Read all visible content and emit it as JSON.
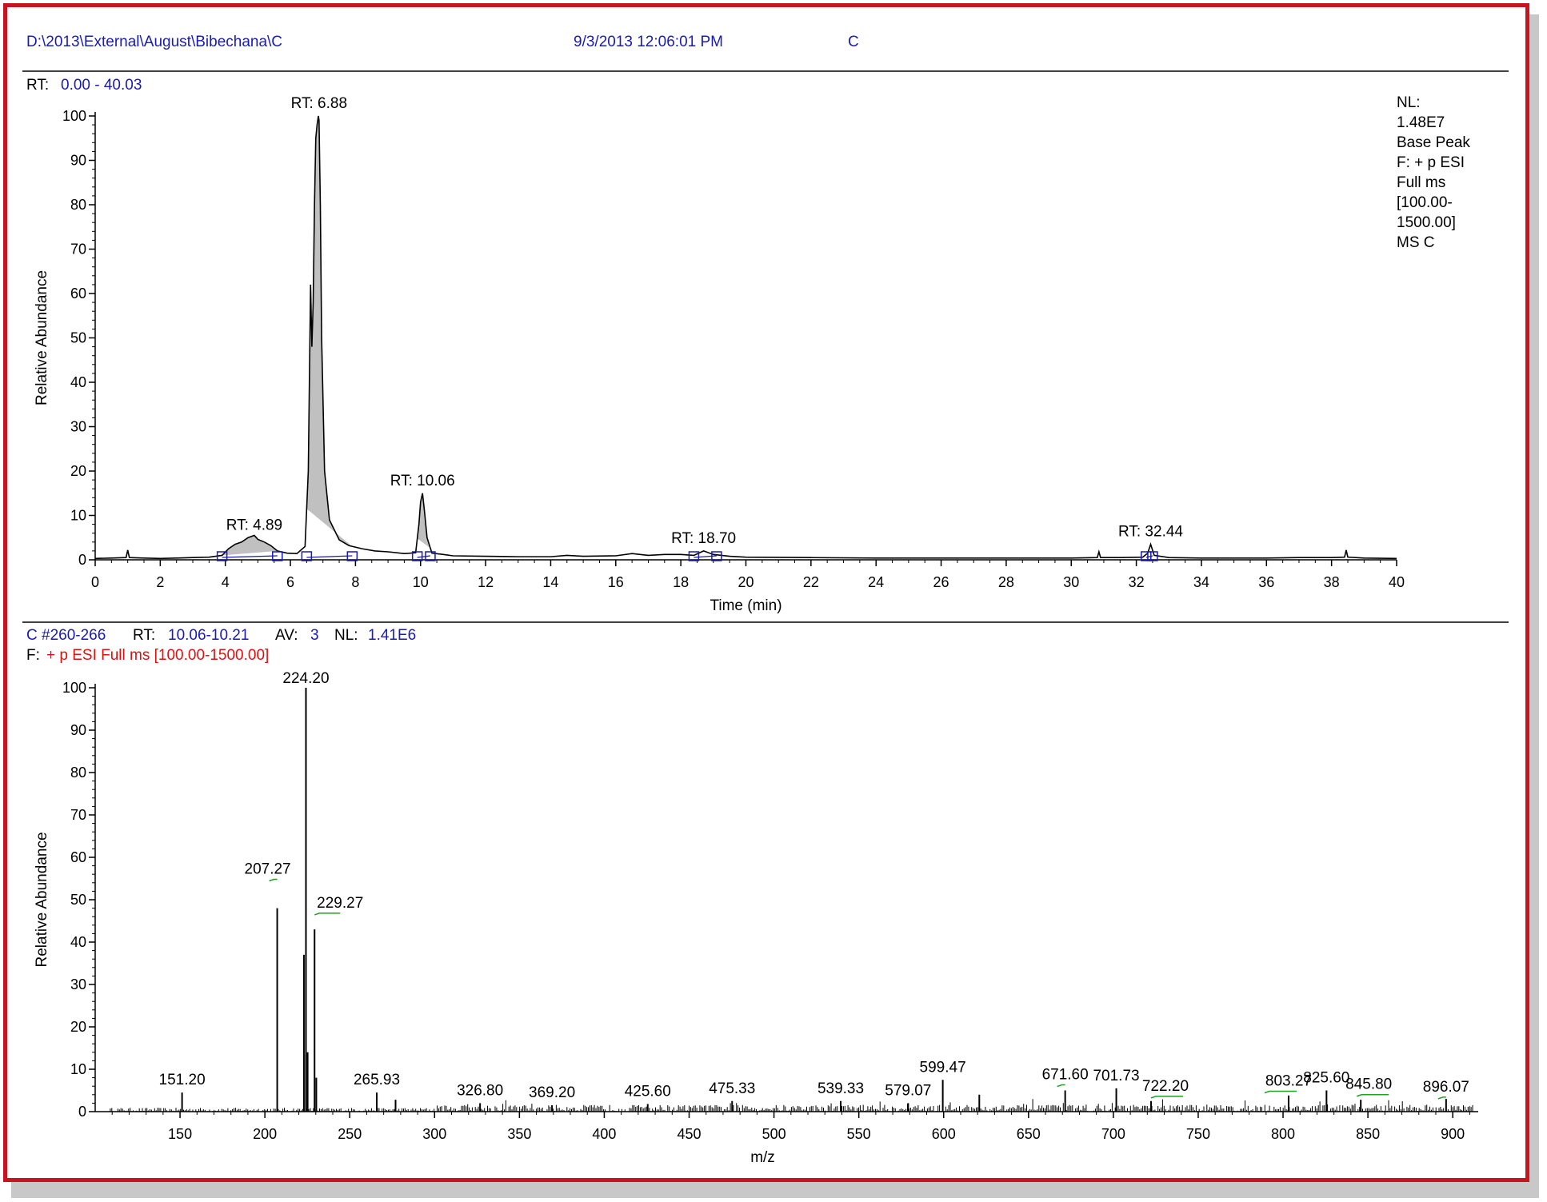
{
  "header": {
    "path": "D:\\2013\\External\\August\\Bibechana\\C",
    "datetime": "9/3/2013 12:06:01 PM",
    "sample": "C"
  },
  "chromatogram": {
    "rt_label": "RT:",
    "rt_range": "0.00 - 40.03",
    "info": [
      "NL:",
      "1.48E7",
      "Base Peak",
      "F: + p ESI",
      "Full ms",
      "[100.00-",
      "1500.00]",
      "MS C"
    ]
  },
  "spectrum": {
    "scan": "C #260-266",
    "rt_label": "RT:",
    "rt_value": "10.06-10.21",
    "av_label": "AV:",
    "av_value": "3",
    "nl_label": "NL:",
    "nl_value": "1.41E6",
    "filter_label": "F:",
    "filter_value": "+ p ESI Full ms [100.00-1500.00]"
  },
  "colors": {
    "frame": "#c8141e",
    "header_text": "#1a1ab4",
    "filter_text": "#e01010",
    "peak_fill": "#c0c0c0",
    "baseline_marker": "#1a1ab4",
    "label_tick": "#20a020"
  },
  "chart_data": [
    {
      "type": "line",
      "xlabel": "Time (min)",
      "ylabel": "Relative Abundance",
      "xlim": [
        0,
        40
      ],
      "ylim": [
        0,
        100
      ],
      "xticks": [
        "0",
        "2",
        "4",
        "6",
        "8",
        "10",
        "12",
        "14",
        "16",
        "18",
        "20",
        "22",
        "24",
        "26",
        "28",
        "30",
        "32",
        "34",
        "36",
        "38",
        "40"
      ],
      "yticks": [
        "0",
        "10",
        "20",
        "30",
        "40",
        "50",
        "60",
        "70",
        "80",
        "90",
        "100"
      ],
      "peak_labels": [
        {
          "text": "RT: 4.89",
          "x": 4.89,
          "y": 5
        },
        {
          "text": "RT: 6.88",
          "x": 6.88,
          "y": 100
        },
        {
          "text": "RT: 10.06",
          "x": 10.06,
          "y": 15
        },
        {
          "text": "RT: 18.70",
          "x": 18.7,
          "y": 2
        },
        {
          "text": "RT: 32.44",
          "x": 32.44,
          "y": 3.5
        }
      ],
      "filled_peaks": [
        [
          3.9,
          5.6
        ],
        [
          6.5,
          7.9
        ],
        [
          9.9,
          10.3
        ]
      ],
      "baseline_markers": [
        3.9,
        5.6,
        6.5,
        7.9,
        9.9,
        10.3,
        18.4,
        19.1,
        32.3,
        32.5
      ],
      "series": [
        {
          "x": [
            0,
            0.5,
            0.95,
            1.0,
            1.05,
            1.5,
            2,
            2.5,
            3,
            3.5,
            3.9,
            4.1,
            4.3,
            4.5,
            4.7,
            4.89,
            5.0,
            5.2,
            5.4,
            5.6,
            5.9,
            6.2,
            6.45,
            6.55,
            6.62,
            6.66,
            6.7,
            6.74,
            6.78,
            6.82,
            6.86,
            6.88,
            6.92,
            6.96,
            7.05,
            7.2,
            7.5,
            7.8,
            8.2,
            8.6,
            9.0,
            9.5,
            9.85,
            9.95,
            10.0,
            10.06,
            10.12,
            10.2,
            10.35,
            10.7,
            11,
            12,
            13,
            14,
            14.5,
            15,
            16,
            16.5,
            17,
            17.5,
            18,
            18.4,
            18.7,
            19.0,
            19.5,
            20,
            22,
            24,
            26,
            28,
            30,
            30.8,
            30.85,
            30.9,
            31.5,
            32.2,
            32.35,
            32.44,
            32.55,
            33,
            34,
            35,
            36,
            37,
            38,
            38.4,
            38.45,
            38.5,
            39,
            40
          ],
          "y": [
            0.3,
            0.4,
            0.5,
            2.2,
            0.5,
            0.4,
            0.3,
            0.4,
            0.5,
            0.6,
            1.0,
            2.5,
            3.5,
            4.0,
            5.0,
            5.5,
            4.6,
            4.0,
            3.2,
            2.0,
            1.5,
            1.4,
            3.0,
            20,
            62,
            48,
            58,
            80,
            95,
            98,
            100,
            99,
            80,
            50,
            20,
            9,
            4.5,
            3.2,
            2.5,
            2.0,
            1.8,
            1.4,
            1.6,
            8.0,
            13,
            15,
            11,
            5.0,
            1.5,
            1.2,
            0.9,
            0.8,
            0.7,
            0.7,
            1.0,
            0.8,
            0.9,
            1.4,
            1.0,
            1.2,
            1.2,
            1.0,
            2.0,
            1.2,
            0.8,
            0.6,
            0.5,
            0.4,
            0.4,
            0.4,
            0.4,
            0.5,
            1.8,
            0.5,
            0.5,
            0.6,
            1.5,
            3.5,
            1.0,
            0.5,
            0.4,
            0.4,
            0.4,
            0.5,
            0.5,
            0.6,
            2.2,
            0.6,
            0.4,
            0.3
          ]
        }
      ]
    },
    {
      "type": "bar",
      "xlabel": "m/z",
      "ylabel": "Relative Abundance",
      "xlim": [
        100,
        915
      ],
      "ylim": [
        0,
        100
      ],
      "xticks": [
        "150",
        "200",
        "250",
        "300",
        "350",
        "400",
        "450",
        "500",
        "550",
        "600",
        "650",
        "700",
        "750",
        "800",
        "850",
        "900"
      ],
      "yticks": [
        "0",
        "10",
        "20",
        "30",
        "40",
        "50",
        "60",
        "70",
        "80",
        "90",
        "100"
      ],
      "peaks": [
        {
          "mz": 151.2,
          "y": 4.5,
          "label": "151.20"
        },
        {
          "mz": 207.27,
          "y": 48,
          "label": "207.27"
        },
        {
          "mz": 223.0,
          "y": 37
        },
        {
          "mz": 224.2,
          "y": 100,
          "label": "224.20"
        },
        {
          "mz": 225.2,
          "y": 14
        },
        {
          "mz": 229.27,
          "y": 43,
          "label": "229.27"
        },
        {
          "mz": 230.3,
          "y": 8
        },
        {
          "mz": 265.93,
          "y": 4.5,
          "label": "265.93"
        },
        {
          "mz": 277.0,
          "y": 2.8
        },
        {
          "mz": 326.8,
          "y": 2.0,
          "label": "326.80"
        },
        {
          "mz": 369.2,
          "y": 1.5,
          "label": "369.20"
        },
        {
          "mz": 425.6,
          "y": 1.8,
          "label": "425.60"
        },
        {
          "mz": 475.33,
          "y": 2.5,
          "label": "475.33"
        },
        {
          "mz": 539.33,
          "y": 2.5,
          "label": "539.33"
        },
        {
          "mz": 579.07,
          "y": 2.0,
          "label": "579.07"
        },
        {
          "mz": 599.47,
          "y": 7.5,
          "label": "599.47"
        },
        {
          "mz": 621.0,
          "y": 4.0
        },
        {
          "mz": 671.6,
          "y": 5.0,
          "label": "671.60"
        },
        {
          "mz": 701.73,
          "y": 5.5,
          "label": "701.73"
        },
        {
          "mz": 722.2,
          "y": 2.5,
          "label": "722.20"
        },
        {
          "mz": 803.27,
          "y": 3.8,
          "label": "803.27"
        },
        {
          "mz": 825.6,
          "y": 5.0,
          "label": "825.60"
        },
        {
          "mz": 845.8,
          "y": 2.8,
          "label": "845.80"
        },
        {
          "mz": 896.07,
          "y": 3.0,
          "label": "896.07"
        }
      ]
    }
  ]
}
